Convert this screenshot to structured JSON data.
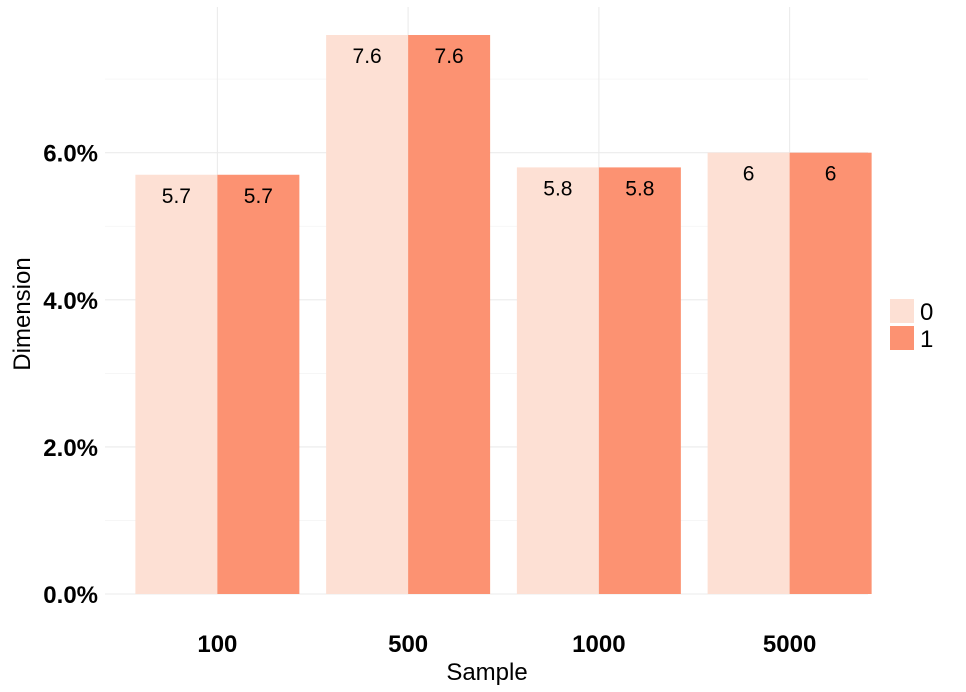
{
  "chart_data": {
    "type": "bar",
    "title": "",
    "xlabel": "Sample",
    "ylabel": "Dimension",
    "categories": [
      "100",
      "500",
      "1000",
      "5000"
    ],
    "series": [
      {
        "name": "0",
        "values": [
          5.7,
          7.6,
          5.8,
          6
        ],
        "labels": [
          "5.7",
          "7.6",
          "5.8",
          "6"
        ]
      },
      {
        "name": "1",
        "values": [
          5.7,
          7.6,
          5.8,
          6
        ],
        "labels": [
          "5.7",
          "7.6",
          "5.8",
          "6"
        ]
      }
    ],
    "yticks": [
      0,
      2,
      4,
      6
    ],
    "ytick_labels": [
      "0.0%",
      "2.0%",
      "4.0%",
      "6.0%"
    ],
    "ylim": [
      0,
      7.6
    ],
    "grid": true,
    "legend_position": "right",
    "colors": [
      "#fde0d4",
      "#fc9272"
    ]
  }
}
